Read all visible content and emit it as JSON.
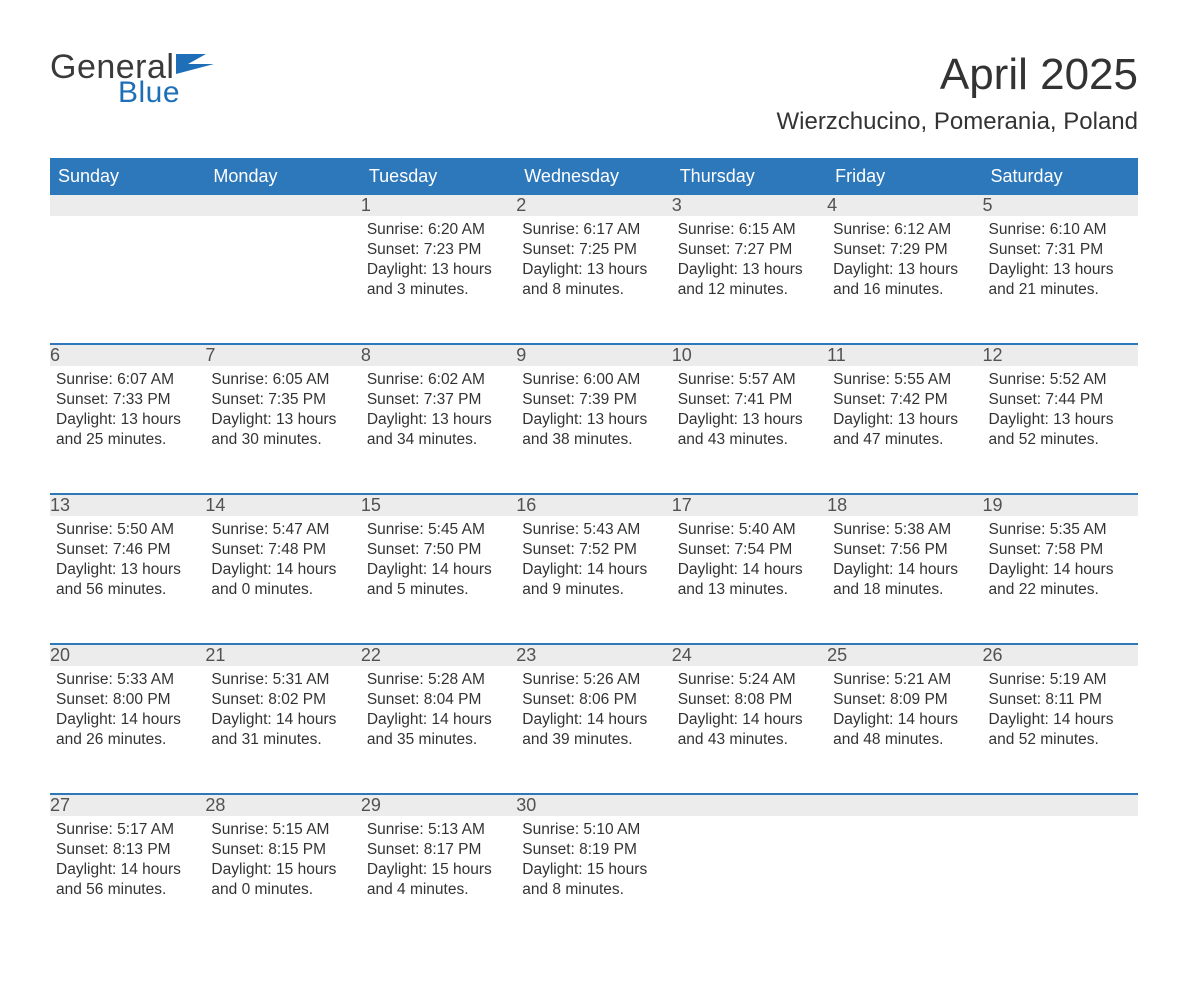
{
  "logo": {
    "general": "General",
    "blue": "Blue",
    "flag_color": "#1e6fb8"
  },
  "title": "April 2025",
  "location": "Wierzchucino, Pomerania, Poland",
  "colors": {
    "header_bg": "#2d77bb",
    "header_text": "#ffffff",
    "daynum_bg": "#ececec",
    "daynum_border": "#2d77bb",
    "daynum_text": "#525252",
    "body_text": "#333333",
    "logo_gray": "#3a3a3a",
    "logo_blue": "#1e6fb8"
  },
  "day_headers": [
    "Sunday",
    "Monday",
    "Tuesday",
    "Wednesday",
    "Thursday",
    "Friday",
    "Saturday"
  ],
  "weeks": [
    [
      null,
      null,
      {
        "n": "1",
        "sunrise": "Sunrise: 6:20 AM",
        "sunset": "Sunset: 7:23 PM",
        "day1": "Daylight: 13 hours",
        "day2": "and 3 minutes."
      },
      {
        "n": "2",
        "sunrise": "Sunrise: 6:17 AM",
        "sunset": "Sunset: 7:25 PM",
        "day1": "Daylight: 13 hours",
        "day2": "and 8 minutes."
      },
      {
        "n": "3",
        "sunrise": "Sunrise: 6:15 AM",
        "sunset": "Sunset: 7:27 PM",
        "day1": "Daylight: 13 hours",
        "day2": "and 12 minutes."
      },
      {
        "n": "4",
        "sunrise": "Sunrise: 6:12 AM",
        "sunset": "Sunset: 7:29 PM",
        "day1": "Daylight: 13 hours",
        "day2": "and 16 minutes."
      },
      {
        "n": "5",
        "sunrise": "Sunrise: 6:10 AM",
        "sunset": "Sunset: 7:31 PM",
        "day1": "Daylight: 13 hours",
        "day2": "and 21 minutes."
      }
    ],
    [
      {
        "n": "6",
        "sunrise": "Sunrise: 6:07 AM",
        "sunset": "Sunset: 7:33 PM",
        "day1": "Daylight: 13 hours",
        "day2": "and 25 minutes."
      },
      {
        "n": "7",
        "sunrise": "Sunrise: 6:05 AM",
        "sunset": "Sunset: 7:35 PM",
        "day1": "Daylight: 13 hours",
        "day2": "and 30 minutes."
      },
      {
        "n": "8",
        "sunrise": "Sunrise: 6:02 AM",
        "sunset": "Sunset: 7:37 PM",
        "day1": "Daylight: 13 hours",
        "day2": "and 34 minutes."
      },
      {
        "n": "9",
        "sunrise": "Sunrise: 6:00 AM",
        "sunset": "Sunset: 7:39 PM",
        "day1": "Daylight: 13 hours",
        "day2": "and 38 minutes."
      },
      {
        "n": "10",
        "sunrise": "Sunrise: 5:57 AM",
        "sunset": "Sunset: 7:41 PM",
        "day1": "Daylight: 13 hours",
        "day2": "and 43 minutes."
      },
      {
        "n": "11",
        "sunrise": "Sunrise: 5:55 AM",
        "sunset": "Sunset: 7:42 PM",
        "day1": "Daylight: 13 hours",
        "day2": "and 47 minutes."
      },
      {
        "n": "12",
        "sunrise": "Sunrise: 5:52 AM",
        "sunset": "Sunset: 7:44 PM",
        "day1": "Daylight: 13 hours",
        "day2": "and 52 minutes."
      }
    ],
    [
      {
        "n": "13",
        "sunrise": "Sunrise: 5:50 AM",
        "sunset": "Sunset: 7:46 PM",
        "day1": "Daylight: 13 hours",
        "day2": "and 56 minutes."
      },
      {
        "n": "14",
        "sunrise": "Sunrise: 5:47 AM",
        "sunset": "Sunset: 7:48 PM",
        "day1": "Daylight: 14 hours",
        "day2": "and 0 minutes."
      },
      {
        "n": "15",
        "sunrise": "Sunrise: 5:45 AM",
        "sunset": "Sunset: 7:50 PM",
        "day1": "Daylight: 14 hours",
        "day2": "and 5 minutes."
      },
      {
        "n": "16",
        "sunrise": "Sunrise: 5:43 AM",
        "sunset": "Sunset: 7:52 PM",
        "day1": "Daylight: 14 hours",
        "day2": "and 9 minutes."
      },
      {
        "n": "17",
        "sunrise": "Sunrise: 5:40 AM",
        "sunset": "Sunset: 7:54 PM",
        "day1": "Daylight: 14 hours",
        "day2": "and 13 minutes."
      },
      {
        "n": "18",
        "sunrise": "Sunrise: 5:38 AM",
        "sunset": "Sunset: 7:56 PM",
        "day1": "Daylight: 14 hours",
        "day2": "and 18 minutes."
      },
      {
        "n": "19",
        "sunrise": "Sunrise: 5:35 AM",
        "sunset": "Sunset: 7:58 PM",
        "day1": "Daylight: 14 hours",
        "day2": "and 22 minutes."
      }
    ],
    [
      {
        "n": "20",
        "sunrise": "Sunrise: 5:33 AM",
        "sunset": "Sunset: 8:00 PM",
        "day1": "Daylight: 14 hours",
        "day2": "and 26 minutes."
      },
      {
        "n": "21",
        "sunrise": "Sunrise: 5:31 AM",
        "sunset": "Sunset: 8:02 PM",
        "day1": "Daylight: 14 hours",
        "day2": "and 31 minutes."
      },
      {
        "n": "22",
        "sunrise": "Sunrise: 5:28 AM",
        "sunset": "Sunset: 8:04 PM",
        "day1": "Daylight: 14 hours",
        "day2": "and 35 minutes."
      },
      {
        "n": "23",
        "sunrise": "Sunrise: 5:26 AM",
        "sunset": "Sunset: 8:06 PM",
        "day1": "Daylight: 14 hours",
        "day2": "and 39 minutes."
      },
      {
        "n": "24",
        "sunrise": "Sunrise: 5:24 AM",
        "sunset": "Sunset: 8:08 PM",
        "day1": "Daylight: 14 hours",
        "day2": "and 43 minutes."
      },
      {
        "n": "25",
        "sunrise": "Sunrise: 5:21 AM",
        "sunset": "Sunset: 8:09 PM",
        "day1": "Daylight: 14 hours",
        "day2": "and 48 minutes."
      },
      {
        "n": "26",
        "sunrise": "Sunrise: 5:19 AM",
        "sunset": "Sunset: 8:11 PM",
        "day1": "Daylight: 14 hours",
        "day2": "and 52 minutes."
      }
    ],
    [
      {
        "n": "27",
        "sunrise": "Sunrise: 5:17 AM",
        "sunset": "Sunset: 8:13 PM",
        "day1": "Daylight: 14 hours",
        "day2": "and 56 minutes."
      },
      {
        "n": "28",
        "sunrise": "Sunrise: 5:15 AM",
        "sunset": "Sunset: 8:15 PM",
        "day1": "Daylight: 15 hours",
        "day2": "and 0 minutes."
      },
      {
        "n": "29",
        "sunrise": "Sunrise: 5:13 AM",
        "sunset": "Sunset: 8:17 PM",
        "day1": "Daylight: 15 hours",
        "day2": "and 4 minutes."
      },
      {
        "n": "30",
        "sunrise": "Sunrise: 5:10 AM",
        "sunset": "Sunset: 8:19 PM",
        "day1": "Daylight: 15 hours",
        "day2": "and 8 minutes."
      },
      null,
      null,
      null
    ]
  ]
}
